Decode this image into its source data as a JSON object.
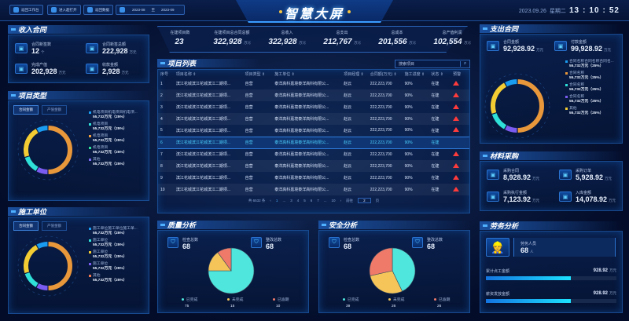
{
  "header": {
    "title": "智慧大屏",
    "buttons": [
      "返回工作台",
      "进入超打开",
      "返回数据"
    ],
    "date_from": "2023-08",
    "date_sep": "至",
    "date_to": "2023-09",
    "date": "2023.09.26",
    "weekday": "星期二",
    "time": [
      "13",
      "10",
      "52"
    ]
  },
  "income": {
    "title": "收入合同",
    "items": [
      {
        "label": "合同新签数",
        "value": "12",
        "unit": "个",
        "icon": "contract-icon"
      },
      {
        "label": "合同新签总额",
        "value": "222,928",
        "unit": "万元",
        "icon": "sign-icon"
      },
      {
        "label": "完成产值",
        "value": "202,928",
        "unit": "万元",
        "icon": "output-icon"
      },
      {
        "label": "收款金额",
        "value": "2,928",
        "unit": "万元",
        "icon": "payment-icon"
      }
    ]
  },
  "project_type": {
    "title": "项目类型",
    "tabs": [
      "合同金额",
      "产值金额"
    ],
    "legend": [
      {
        "name": "机电项目机电项目机电项...",
        "value": "55,732万元（25%）"
      },
      {
        "name": "机电项目",
        "value": "55,732万元（25%）"
      },
      {
        "name": "机电项目",
        "value": "55,732万元（25%）"
      },
      {
        "name": "机电项目",
        "value": "55,732万元（25%）"
      },
      {
        "name": "其他",
        "value": "55,732万元（25%）"
      }
    ],
    "colors": [
      "#1a9cf0",
      "#2fe0d8",
      "#f0a040",
      "#2fe09a",
      "#7b6cf0"
    ]
  },
  "contractor": {
    "title": "施工单位",
    "tabs": [
      "合同金额",
      "产值金额"
    ],
    "legend": [
      {
        "name": "施工单位施工单位施工单...",
        "value": "55,732万元（25%）"
      },
      {
        "name": "施工单位",
        "value": "55,732万元（25%）"
      },
      {
        "name": "施工单位",
        "value": "55,732万元（25%）"
      },
      {
        "name": "施工单位",
        "value": "55,732万元（25%）"
      },
      {
        "name": "其他",
        "value": "55,732万元（25%）"
      }
    ],
    "colors": [
      "#1a9cf0",
      "#2fe0d8",
      "#f2cc32",
      "#7b5cf0",
      "#f07850"
    ]
  },
  "donut_colors": [
    "#e8973a",
    "#7b5cf0",
    "#2fe0d8",
    "#f2cc32",
    "#1a9cf0"
  ],
  "donut_shares": [
    50,
    8,
    12,
    22,
    8
  ],
  "stats": [
    {
      "label": "在建项目数",
      "value": "23",
      "unit": ""
    },
    {
      "label": "在建项目总合同总额",
      "value": "322,928",
      "unit": "万元"
    },
    {
      "label": "总收入",
      "value": "322,928",
      "unit": "万元"
    },
    {
      "label": "总支出",
      "value": "212,767",
      "unit": "万元"
    },
    {
      "label": "总成本",
      "value": "201,556",
      "unit": "万元"
    },
    {
      "label": "总产值利润",
      "value": "102,554",
      "unit": "万元"
    }
  ],
  "project_list": {
    "title": "项目列表",
    "search_placeholder": "搜索项目",
    "columns": [
      "序号",
      "项目名称 ⇕",
      "项目类型 ⇕",
      "施工单位 ⇕",
      "项目经理 ⇕",
      "合同额(万元) ⇕",
      "施工进度 ⇕",
      "状态 ⇕",
      "预警"
    ],
    "rows": [
      [
        "1",
        "滨江花城滨江花城滨江二期项...",
        "自营",
        "泰洋高科嘉境泰洋高科有限公...",
        "赵云",
        "222,223,700",
        "90%",
        "在建",
        true
      ],
      [
        "2",
        "滨江花城滨江花城滨江二期项...",
        "自营",
        "泰洋高科嘉境泰洋高科有限公...",
        "赵云",
        "222,223,700",
        "90%",
        "在建",
        true
      ],
      [
        "3",
        "滨江花城滨江花城滨江二期项...",
        "自营",
        "泰洋高科嘉境泰洋高科有限公...",
        "赵云",
        "222,223,700",
        "90%",
        "在建",
        true
      ],
      [
        "4",
        "滨江花城滨江花城滨江二期项...",
        "自营",
        "泰洋高科嘉境泰洋高科有限公...",
        "赵云",
        "222,223,700",
        "90%",
        "在建",
        true
      ],
      [
        "5",
        "滨江花城滨江花城滨江二期项...",
        "自营",
        "泰洋高科嘉境泰洋高科有限公...",
        "赵云",
        "222,223,700",
        "90%",
        "在建",
        true
      ],
      [
        "6",
        "滨江花城滨江花城滨江二期项...",
        "自营",
        "泰洋高科嘉境泰洋高科有限公...",
        "赵云",
        "222,223,700",
        "90%",
        "在建",
        false
      ],
      [
        "7",
        "滨江花城滨江花城滨江二期项...",
        "自营",
        "泰洋高科嘉境泰洋高科有限公...",
        "赵云",
        "222,223,700",
        "90%",
        "在建",
        true
      ],
      [
        "8",
        "滨江花城滨江花城滨江二期项...",
        "自营",
        "泰洋高科嘉境泰洋高科有限公...",
        "赵云",
        "222,223,700",
        "90%",
        "在建",
        true
      ],
      [
        "9",
        "滨江花城滨江花城滨江二期项...",
        "自营",
        "泰洋高科嘉境泰洋高科有限公...",
        "赵云",
        "222,223,700",
        "90%",
        "在建",
        true
      ],
      [
        "10",
        "滨江花城滨江花城滨江二期项...",
        "自营",
        "泰洋高科嘉境泰洋高科有限公...",
        "赵云",
        "222,223,700",
        "90%",
        "在建",
        true
      ]
    ],
    "selected_row": 6,
    "pagination": {
      "total": "共 6532 条",
      "pages": [
        "1",
        "...",
        "3",
        "4",
        "5",
        "6",
        "7",
        "...",
        "10"
      ],
      "current": "1",
      "goto_label": "前往",
      "goto_value": "2",
      "page_label": "页"
    }
  },
  "quality": {
    "title": "质量分析",
    "stat1_label": "检查总数",
    "stat1_value": "68",
    "stat2_label": "整改总数",
    "stat2_value": "68",
    "legend": [
      "已完成",
      "未完成",
      "已逾期"
    ],
    "values": [
      75,
      15,
      10
    ]
  },
  "safety": {
    "title": "安全分析",
    "stat1_label": "检查总数",
    "stat1_value": "68",
    "stat2_label": "整改总数",
    "stat2_value": "68",
    "legend": [
      "已完成",
      "未完成",
      "已逾期"
    ],
    "values": [
      39,
      26,
      26
    ]
  },
  "pie_colors": [
    "#4ee6dd",
    "#f5c55a",
    "#f07a6a"
  ],
  "expense": {
    "title": "支出合同",
    "items": [
      {
        "label": "合同金额",
        "value": "92,928.92",
        "unit": "万元"
      },
      {
        "label": "付款金额",
        "value": "99,928.92",
        "unit": "万元"
      }
    ],
    "legend": [
      {
        "name": "合同名称合同名称合同名...",
        "value": "55,732万元（25%）"
      },
      {
        "name": "合同名称",
        "value": "55,732万元（25%）"
      },
      {
        "name": "合同名称",
        "value": "55,732万元（25%）"
      },
      {
        "name": "合同名称",
        "value": "55,732万元（25%）"
      },
      {
        "name": "其他",
        "value": "55,732万元（25%）"
      }
    ],
    "colors": [
      "#1a9cf0",
      "#e8973a",
      "#2fe0d8",
      "#7b5cf0",
      "#f2cc32"
    ]
  },
  "material": {
    "title": "材料采购",
    "items": [
      {
        "label": "采购合同",
        "value": "8,928.92",
        "unit": "万元"
      },
      {
        "label": "采购订单",
        "value": "5,928.92",
        "unit": "万元"
      },
      {
        "label": "采购执行金额",
        "value": "7,123.92",
        "unit": "万元"
      },
      {
        "label": "入库金额",
        "value": "14,078.92",
        "unit": "万元"
      }
    ]
  },
  "labor": {
    "title": "劳务分析",
    "people_label": "劳务人员",
    "people_value": "68",
    "people_unit": "人",
    "bars": [
      {
        "label": "累计点工金额",
        "value": "928.92",
        "unit": "万元",
        "fill": 0.65
      },
      {
        "label": "薪资发放金额",
        "value": "928.92",
        "unit": "万元",
        "fill": 0.65
      }
    ]
  }
}
